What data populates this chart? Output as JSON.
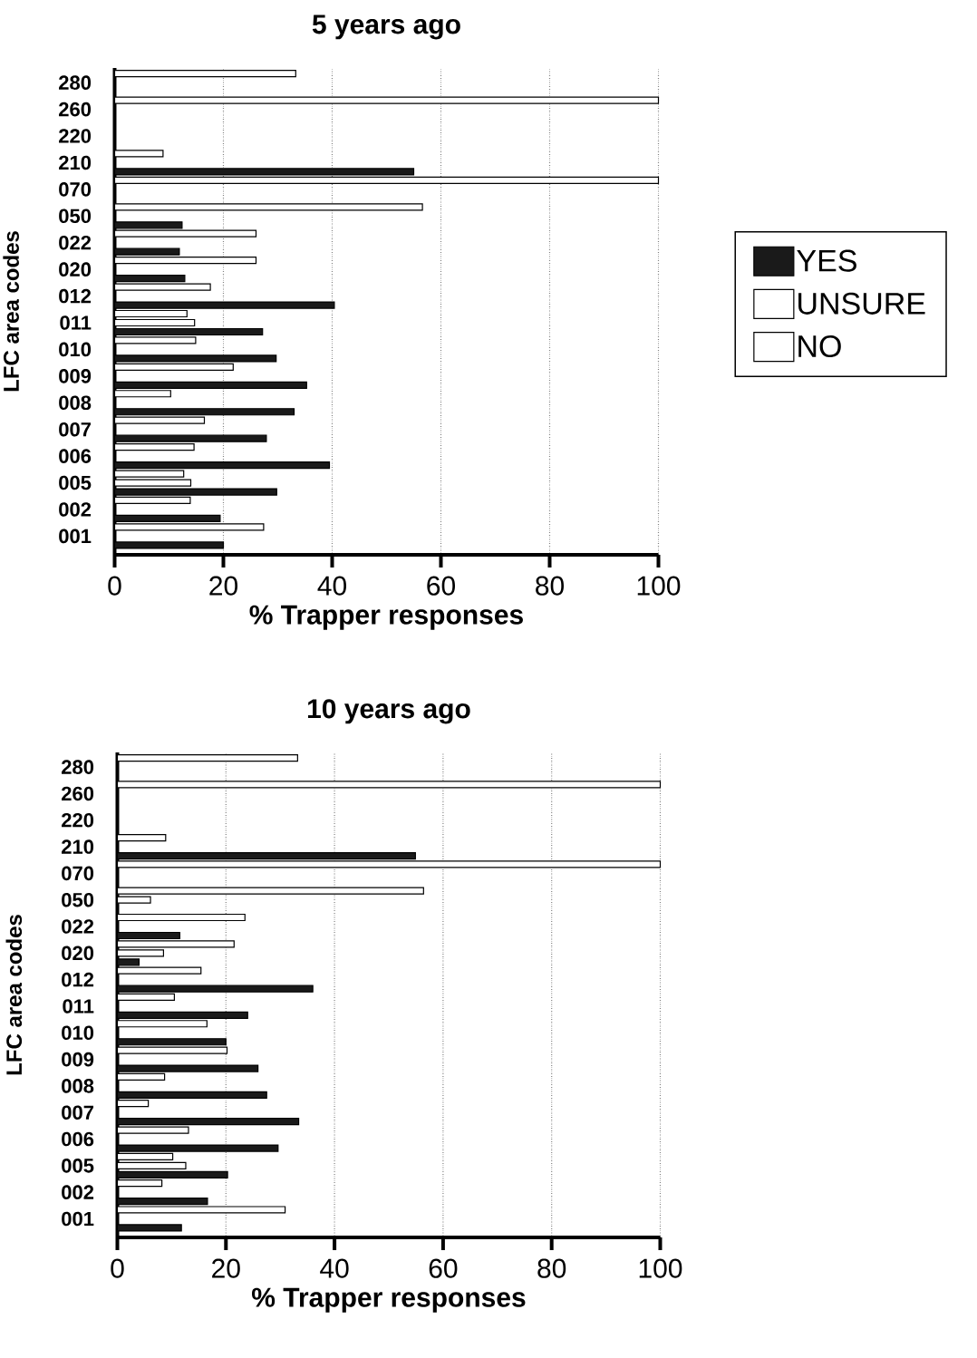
{
  "chart_data": [
    {
      "type": "bar",
      "orientation": "horizontal",
      "title": "5 years ago",
      "xlabel": "% Trapper responses",
      "ylabel": "LFC area codes",
      "categories": [
        "280",
        "260",
        "220",
        "210",
        "070",
        "050",
        "022",
        "020",
        "012",
        "011",
        "010",
        "009",
        "008",
        "007",
        "006",
        "005",
        "002",
        "001"
      ],
      "series": [
        {
          "name": "NO",
          "color": "#ffffff",
          "values": [
            33.3,
            100,
            null,
            8.9,
            100,
            56.6,
            26,
            26,
            17.6,
            13.3,
            14.9,
            21.8,
            10.3,
            16.5,
            14.6,
            12.7,
            13.9,
            27.4
          ]
        },
        {
          "name": "UNSURE",
          "color": "#ffffff",
          "values": [
            null,
            null,
            null,
            null,
            null,
            null,
            null,
            null,
            null,
            14.7,
            null,
            null,
            null,
            null,
            null,
            14,
            null,
            null
          ]
        },
        {
          "name": "YES",
          "color": "#1a1a1a",
          "values": [
            null,
            null,
            null,
            55,
            null,
            12.4,
            11.9,
            12.9,
            40.4,
            27.2,
            29.7,
            35.3,
            33,
            27.9,
            39.5,
            29.8,
            19.4,
            20
          ]
        }
      ],
      "xlim": [
        0,
        100
      ],
      "xticks": [
        0,
        20,
        40,
        60,
        80,
        100
      ],
      "grid": "x",
      "legend": "right"
    },
    {
      "type": "bar",
      "orientation": "horizontal",
      "title": "10 years ago",
      "xlabel": "% Trapper responses",
      "ylabel": "LFC area codes",
      "categories": [
        "280",
        "260",
        "220",
        "210",
        "070",
        "050",
        "022",
        "020",
        "012",
        "011",
        "010",
        "009",
        "008",
        "007",
        "006",
        "005",
        "002",
        "001"
      ],
      "series": [
        {
          "color": "#ffffff",
          "values": [
            33.2,
            100,
            null,
            8.9,
            100,
            56.4,
            23.5,
            21.5,
            15.4,
            10.5,
            16.5,
            20.2,
            8.7,
            5.7,
            13.1,
            10.2,
            8.2,
            30.9
          ]
        },
        {
          "color": "#ffffff",
          "values": [
            null,
            null,
            null,
            null,
            null,
            6.1,
            null,
            8.5,
            null,
            null,
            null,
            null,
            null,
            null,
            null,
            12.6,
            null,
            null
          ]
        },
        {
          "color": "#1a1a1a",
          "values": [
            null,
            null,
            null,
            54.9,
            null,
            null,
            11.5,
            4,
            36,
            24,
            20,
            25.9,
            27.5,
            33.4,
            29.6,
            20.3,
            16.6,
            11.8
          ]
        }
      ],
      "xlim": [
        0,
        100
      ],
      "xticks": [
        0,
        20,
        40,
        60,
        80,
        100
      ],
      "grid": "x"
    }
  ]
}
